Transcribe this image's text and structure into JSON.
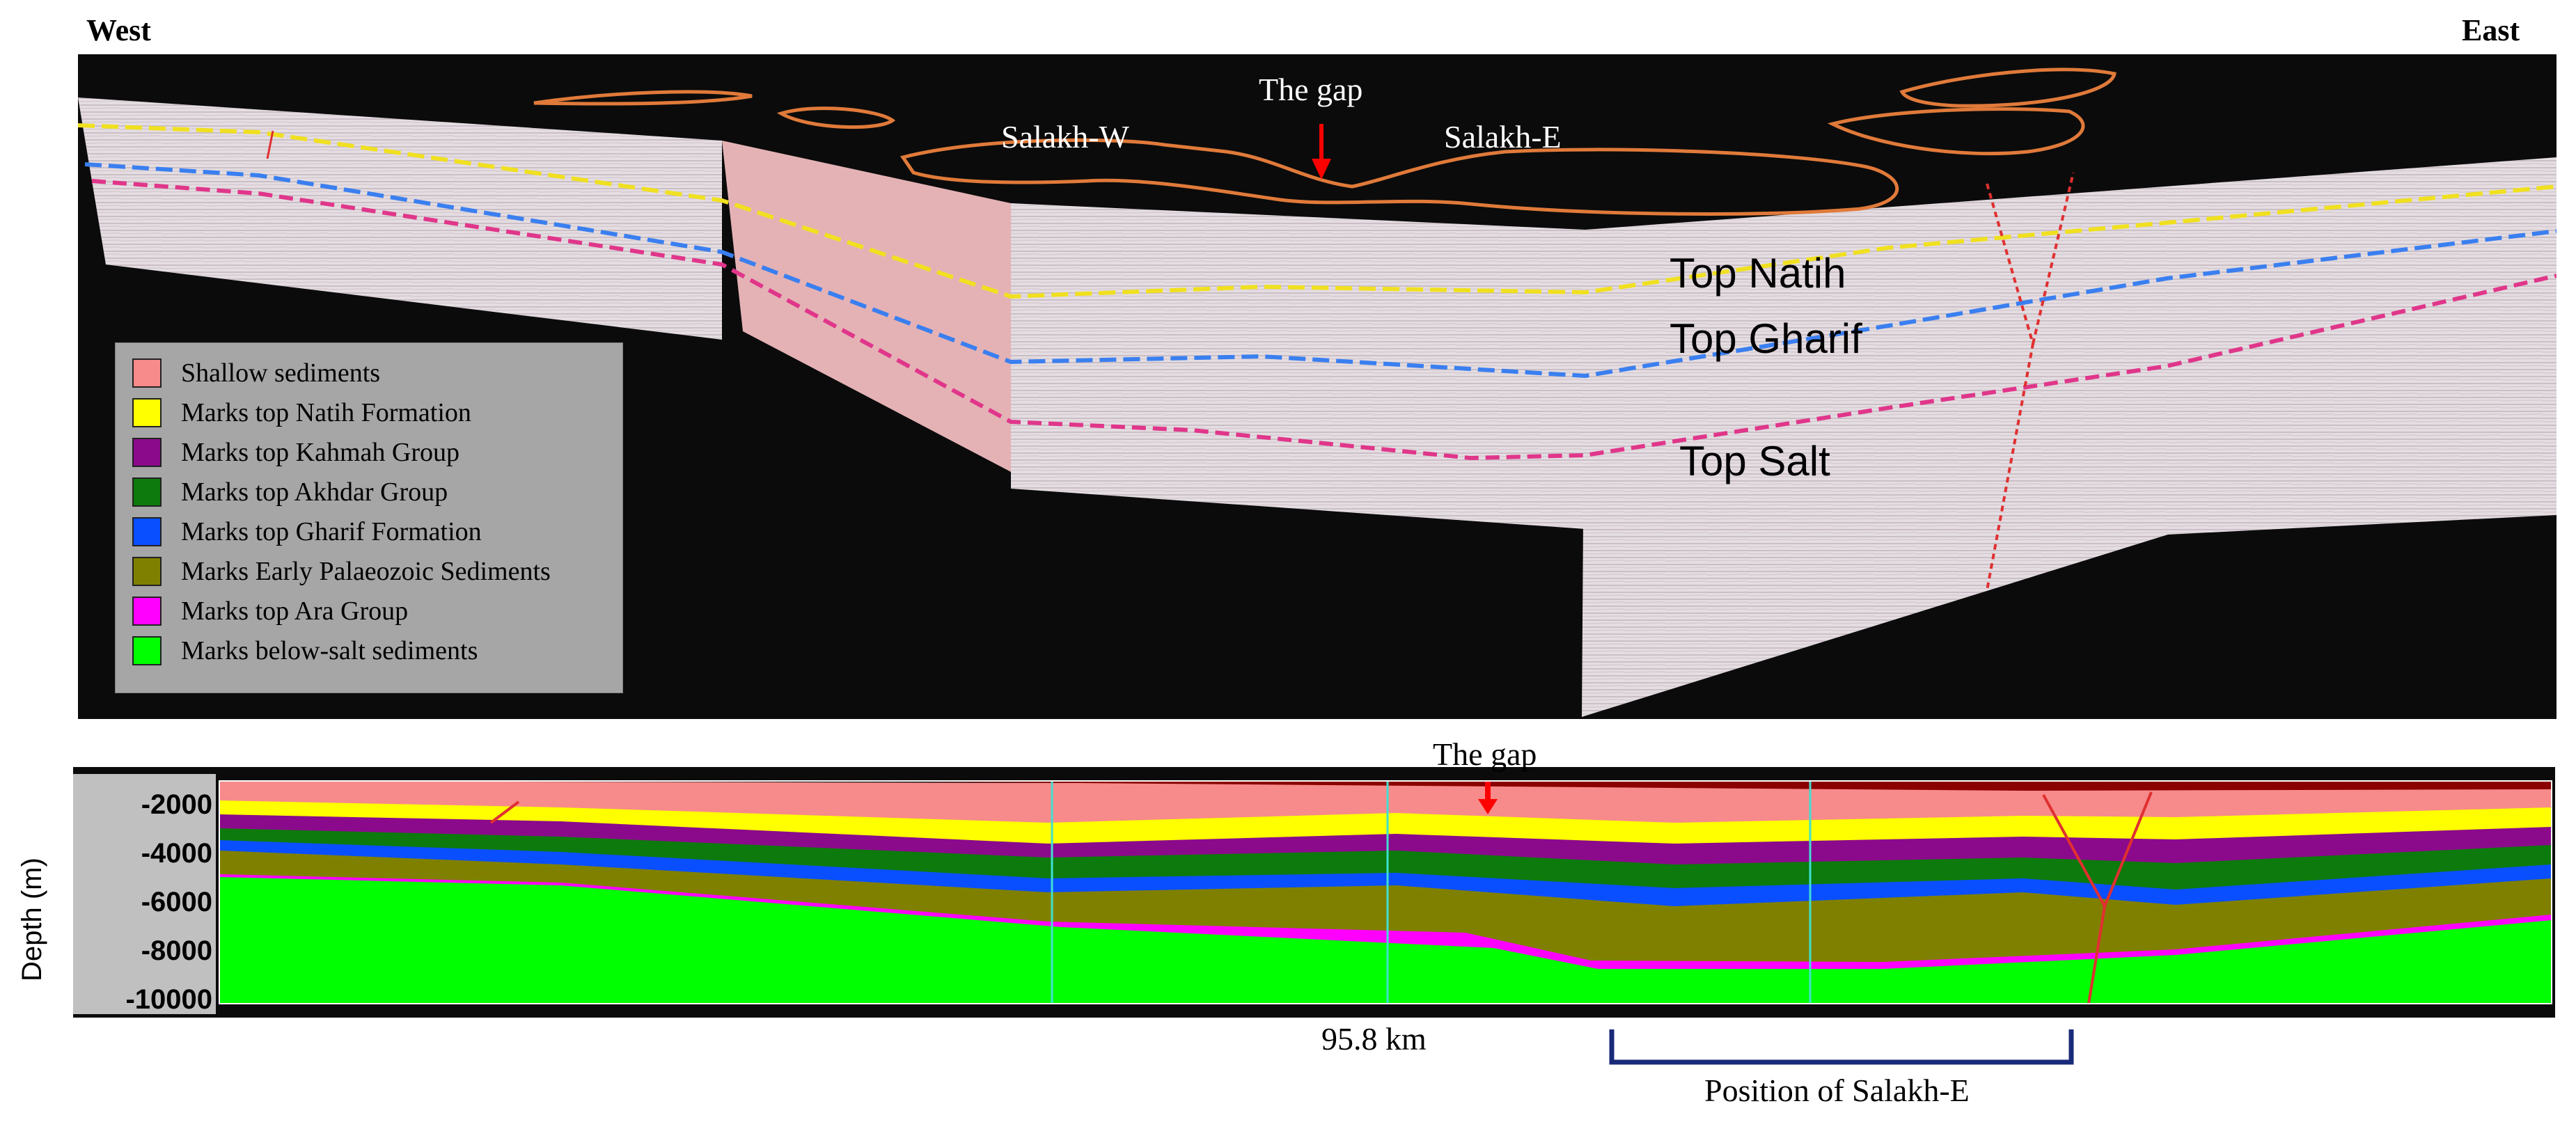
{
  "directions": {
    "west": "West",
    "east": "East"
  },
  "seismic": {
    "gap_label": "The gap",
    "wells": [
      "Salakh-W",
      "Salakh-E"
    ],
    "horizons": [
      "Top Natih",
      "Top Gharif",
      "Top Salt"
    ]
  },
  "legend": [
    {
      "label": "Shallow sediments",
      "color": "#f78a8a"
    },
    {
      "label": "Marks top Natih Formation",
      "color": "#ffff00"
    },
    {
      "label": "Marks top Kahmah Group",
      "color": "#8b0a8b"
    },
    {
      "label": "Marks top Akhdar Group",
      "color": "#0d7a0d"
    },
    {
      "label": "Marks top Gharif Formation",
      "color": "#0a4fff"
    },
    {
      "label": "Marks Early Palaeozoic Sediments",
      "color": "#808000"
    },
    {
      "label": "Marks top Ara Group",
      "color": "#ff00ff"
    },
    {
      "label": "Marks below-salt sediments",
      "color": "#00ff00"
    }
  ],
  "model": {
    "gap_label": "The gap",
    "y_axis_label": "Depth (m)",
    "y_ticks": [
      "-2000",
      "-4000",
      "-6000",
      "-8000",
      "-10000"
    ],
    "distance_label": "95.8 km",
    "position_label": "Position of Salakh-E"
  }
}
